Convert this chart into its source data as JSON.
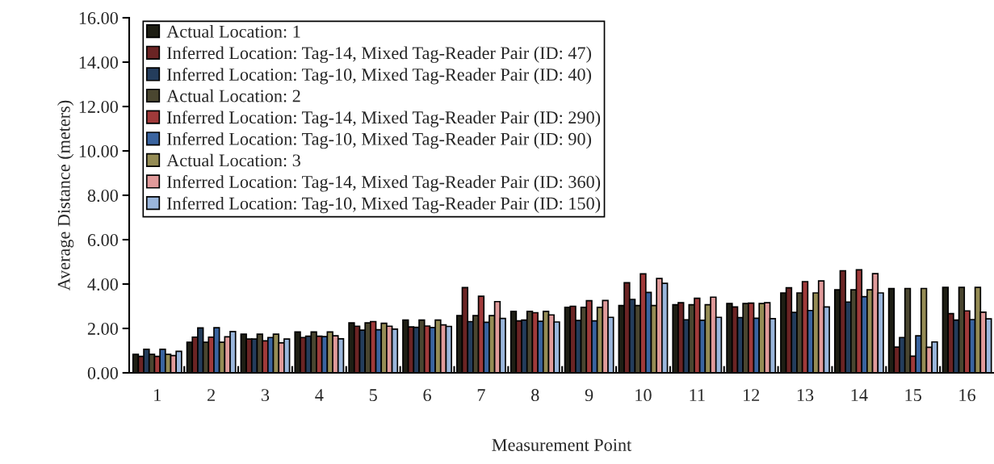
{
  "chart_data": {
    "type": "bar",
    "xlabel": "Measurement Point",
    "ylabel": "Average Distance (meters)",
    "categories": [
      "1",
      "2",
      "3",
      "4",
      "5",
      "6",
      "7",
      "8",
      "9",
      "10",
      "11",
      "12",
      "13",
      "14",
      "15",
      "16"
    ],
    "ylim": [
      0,
      16
    ],
    "yticks": [
      {
        "value": 0,
        "label": "0.00"
      },
      {
        "value": 2,
        "label": "2.00"
      },
      {
        "value": 4,
        "label": "4.00"
      },
      {
        "value": 6,
        "label": "6.00"
      },
      {
        "value": 8,
        "label": "8.00"
      },
      {
        "value": 10,
        "label": "10.00"
      },
      {
        "value": 12,
        "label": "12.00"
      },
      {
        "value": 14,
        "label": "14.00"
      },
      {
        "value": 16,
        "label": "16.00"
      }
    ],
    "grid": false,
    "legend": "top left",
    "series": [
      {
        "name": "Actual Location: 1",
        "color": "#1e1e14",
        "values": [
          0.83,
          1.38,
          1.74,
          1.84,
          2.25,
          2.38,
          2.58,
          2.77,
          2.95,
          3.03,
          3.07,
          3.12,
          3.6,
          3.74,
          3.8,
          3.85
        ]
      },
      {
        "name": "Inferred Location: Tag-14, Mixed Tag-Reader Pair (ID: 47)",
        "color": "#6b2424",
        "values": [
          0.74,
          1.61,
          1.52,
          1.59,
          2.1,
          2.07,
          3.84,
          2.34,
          3.0,
          4.06,
          3.16,
          2.97,
          3.83,
          4.6,
          1.16,
          2.67
        ]
      },
      {
        "name": "Inferred Location: Tag-10, Mixed Tag-Reader Pair (ID: 40)",
        "color": "#243d5c",
        "values": [
          1.06,
          2.02,
          1.52,
          1.65,
          1.92,
          2.05,
          2.31,
          2.38,
          2.36,
          3.31,
          2.39,
          2.49,
          2.72,
          3.19,
          1.59,
          2.38
        ]
      },
      {
        "name": "Actual Location: 2",
        "color": "#4a4630",
        "values": [
          0.83,
          1.38,
          1.74,
          1.84,
          2.25,
          2.38,
          2.58,
          2.77,
          2.95,
          3.03,
          3.07,
          3.12,
          3.6,
          3.74,
          3.8,
          3.85
        ]
      },
      {
        "name": "Inferred Location: Tag-14, Mixed Tag-Reader Pair (ID: 290)",
        "color": "#a03a3a",
        "values": [
          0.74,
          1.61,
          1.44,
          1.65,
          2.31,
          2.11,
          3.45,
          2.71,
          3.25,
          4.46,
          3.36,
          3.14,
          4.11,
          4.64,
          0.75,
          2.79
        ]
      },
      {
        "name": "Inferred Location: Tag-10, Mixed Tag-Reader Pair (ID: 90)",
        "color": "#3a64a0",
        "values": [
          1.06,
          2.03,
          1.59,
          1.63,
          1.94,
          2.04,
          2.28,
          2.32,
          2.34,
          3.62,
          2.37,
          2.46,
          2.81,
          3.43,
          1.67,
          2.4
        ]
      },
      {
        "name": "Actual Location: 3",
        "color": "#958c55",
        "values": [
          0.83,
          1.38,
          1.74,
          1.84,
          2.23,
          2.38,
          2.58,
          2.77,
          2.95,
          3.03,
          3.07,
          3.12,
          3.6,
          3.74,
          3.8,
          3.85
        ]
      },
      {
        "name": "Inferred Location: Tag-14, Mixed Tag-Reader Pair (ID: 360)",
        "color": "#e09a9a",
        "values": [
          0.78,
          1.62,
          1.35,
          1.67,
          2.1,
          2.16,
          3.21,
          2.61,
          3.26,
          4.25,
          3.41,
          3.16,
          4.14,
          4.47,
          1.15,
          2.73
        ]
      },
      {
        "name": "Inferred Location: Tag-10, Mixed Tag-Reader Pair (ID: 150)",
        "color": "#9ab6dc",
        "values": [
          0.97,
          1.86,
          1.52,
          1.53,
          1.97,
          2.09,
          2.45,
          2.29,
          2.5,
          4.03,
          2.5,
          2.44,
          2.97,
          3.6,
          1.39,
          2.43
        ]
      }
    ]
  }
}
